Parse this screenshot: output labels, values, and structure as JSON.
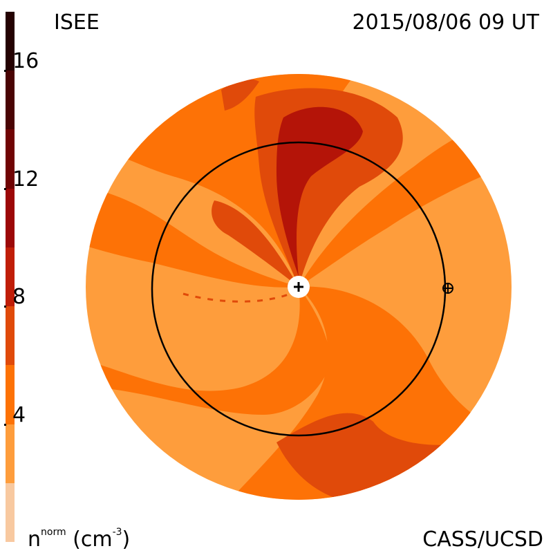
{
  "header": {
    "observatory": "ISEE",
    "timestamp": "2015/08/06 09 UT"
  },
  "footer": {
    "unit_label_base": "n",
    "unit_label_sup": "norm",
    "unit_label_rest": " (cm",
    "unit_label_exp": "-3",
    "unit_label_close": ")",
    "credit": "CASS/UCSD"
  },
  "colorbar": {
    "ticks": [
      "4",
      "8",
      "12",
      "16"
    ],
    "min": 0,
    "max": 18,
    "levels": [
      {
        "from": 0,
        "to": 2,
        "color": "#f8c9a0"
      },
      {
        "from": 2,
        "to": 4,
        "color": "#fe9d3c"
      },
      {
        "from": 4,
        "to": 6,
        "color": "#fd7206"
      },
      {
        "from": 6,
        "to": 8,
        "color": "#e04a0a"
      },
      {
        "from": 8,
        "to": 10,
        "color": "#c01e08"
      },
      {
        "from": 10,
        "to": 12,
        "color": "#9c0808"
      },
      {
        "from": 12,
        "to": 14,
        "color": "#700404"
      },
      {
        "from": 14,
        "to": 16,
        "color": "#4a0404"
      },
      {
        "from": 16,
        "to": 18,
        "color": "#240202"
      }
    ]
  },
  "map": {
    "sun_symbol": "+",
    "earth_symbol": "⊕",
    "colors": {
      "light": "#fe9d3c",
      "mid": "#fd7206",
      "dark": "#e04a0a",
      "red": "#b41408",
      "orbit": "#000000"
    }
  }
}
